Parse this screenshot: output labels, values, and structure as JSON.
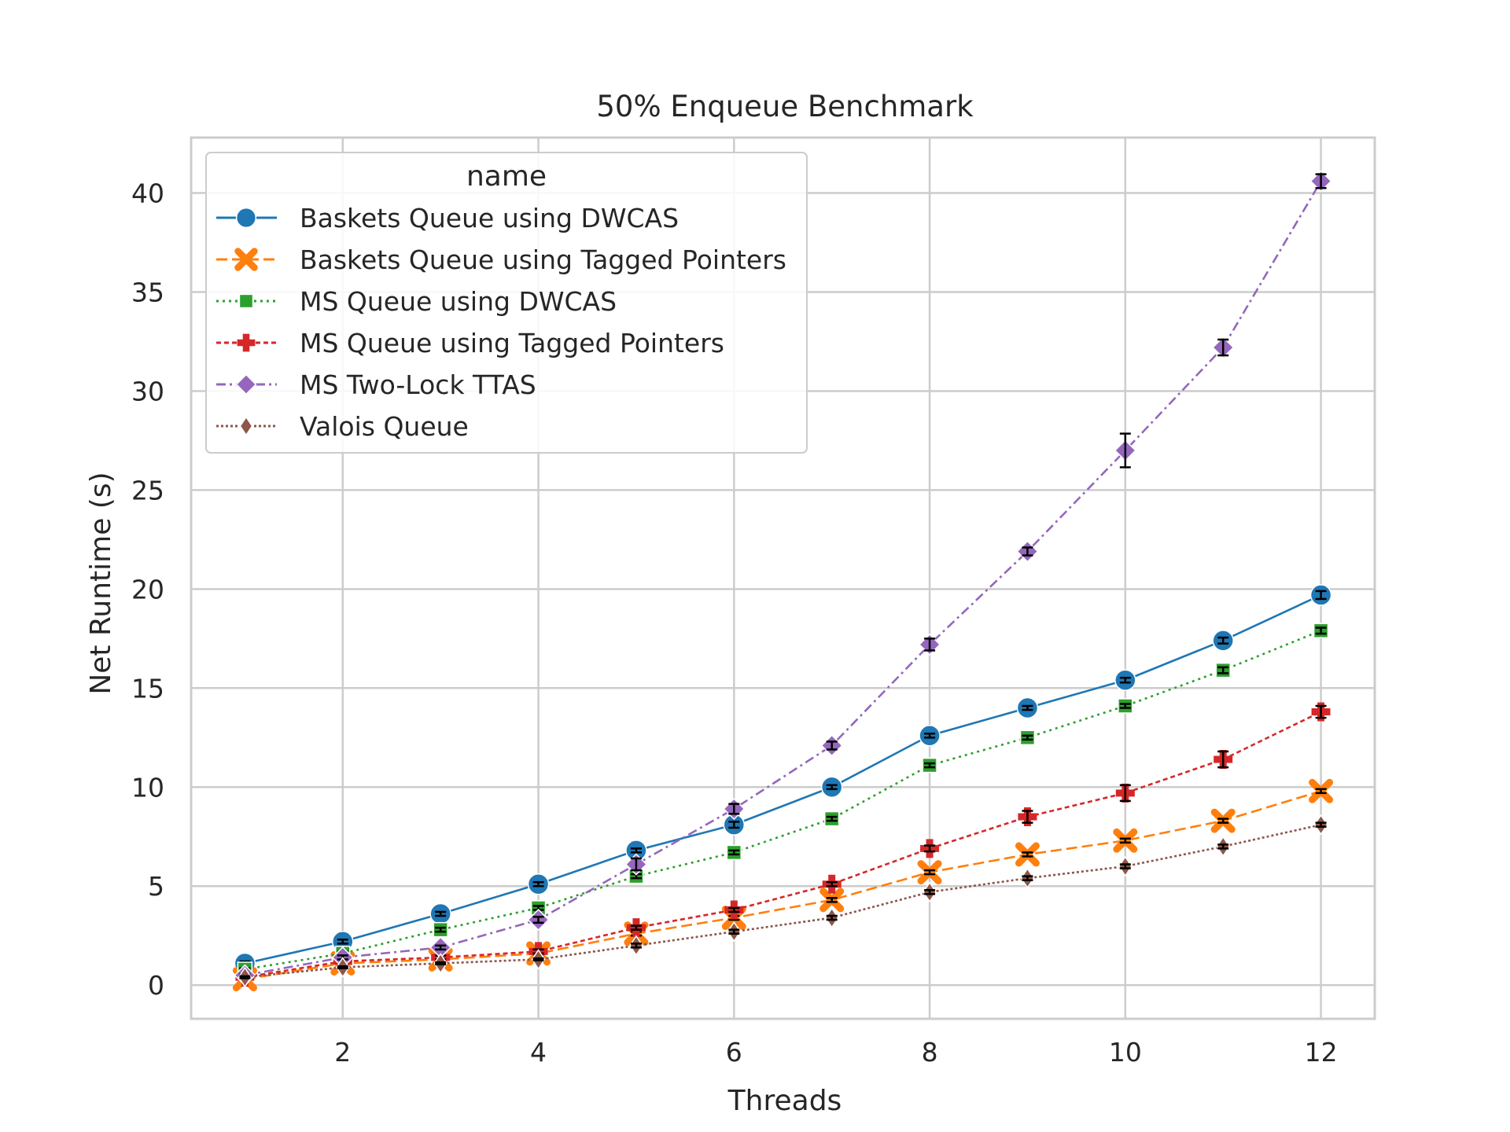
{
  "chart_data": {
    "type": "line",
    "title": "50% Enqueue Benchmark",
    "xlabel": "Threads",
    "ylabel": "Net Runtime (s)",
    "xlim": [
      0.45,
      12.55
    ],
    "ylim": [
      -1.7,
      42.8
    ],
    "xticks": [
      "2",
      "4",
      "6",
      "8",
      "10",
      "12"
    ],
    "yticks": [
      "0",
      "5",
      "10",
      "15",
      "20",
      "25",
      "30",
      "35",
      "40"
    ],
    "grid": true,
    "legend": {
      "title": "name",
      "placement": "upper-left"
    },
    "x": [
      1,
      2,
      3,
      4,
      5,
      6,
      7,
      8,
      9,
      10,
      11,
      12
    ],
    "series": [
      {
        "name": "Baskets Queue using DWCAS",
        "color": "#1f77b4",
        "marker": "circle",
        "linestyle": "solid",
        "values": [
          1.1,
          2.2,
          3.6,
          5.1,
          6.8,
          8.1,
          10.0,
          12.6,
          14.0,
          15.4,
          17.4,
          19.7
        ],
        "err": [
          0.1,
          0.1,
          0.1,
          0.1,
          0.1,
          0.15,
          0.1,
          0.1,
          0.1,
          0.12,
          0.15,
          0.2
        ]
      },
      {
        "name": "Baskets Queue using Tagged Pointers",
        "color": "#ff7f0e",
        "marker": "x",
        "linestyle": "dashed",
        "values": [
          0.3,
          1.1,
          1.3,
          1.6,
          2.6,
          3.4,
          4.3,
          5.7,
          6.6,
          7.3,
          8.3,
          9.8
        ],
        "err": [
          0.05,
          0.05,
          0.05,
          0.05,
          0.1,
          0.1,
          0.1,
          0.1,
          0.1,
          0.1,
          0.1,
          0.1
        ]
      },
      {
        "name": "MS Queue using DWCAS",
        "color": "#2ca02c",
        "marker": "square",
        "linestyle": "dotted",
        "values": [
          0.8,
          1.6,
          2.8,
          3.9,
          5.5,
          6.7,
          8.4,
          11.1,
          12.5,
          14.1,
          15.9,
          17.9
        ],
        "err": [
          0.05,
          0.1,
          0.1,
          0.1,
          0.1,
          0.1,
          0.1,
          0.1,
          0.1,
          0.1,
          0.15,
          0.15
        ]
      },
      {
        "name": "MS Queue using Tagged Pointers",
        "color": "#d62728",
        "marker": "plus",
        "linestyle": "densely-dashed",
        "values": [
          0.4,
          1.2,
          1.4,
          1.7,
          2.9,
          3.8,
          5.1,
          6.9,
          8.5,
          9.7,
          11.4,
          13.8
        ],
        "err": [
          0.05,
          0.1,
          0.1,
          0.1,
          0.1,
          0.1,
          0.1,
          0.15,
          0.3,
          0.4,
          0.4,
          0.3
        ]
      },
      {
        "name": "MS Two-Lock TTAS",
        "color": "#9467bd",
        "marker": "diamond",
        "linestyle": "dashdot",
        "values": [
          0.5,
          1.4,
          1.9,
          3.3,
          6.1,
          8.9,
          12.1,
          17.2,
          21.9,
          27.0,
          32.2,
          40.6
        ],
        "err": [
          0.05,
          0.1,
          0.1,
          0.15,
          0.3,
          0.25,
          0.2,
          0.3,
          0.2,
          0.85,
          0.4,
          0.35
        ]
      },
      {
        "name": "Valois Queue",
        "color": "#8c564b",
        "marker": "thin-diamond",
        "linestyle": "dotted-dense",
        "values": [
          0.4,
          0.9,
          1.1,
          1.3,
          2.0,
          2.7,
          3.4,
          4.7,
          5.4,
          6.0,
          7.0,
          8.1
        ],
        "err": [
          0.05,
          0.05,
          0.05,
          0.05,
          0.1,
          0.1,
          0.1,
          0.1,
          0.1,
          0.1,
          0.1,
          0.1
        ]
      }
    ]
  }
}
